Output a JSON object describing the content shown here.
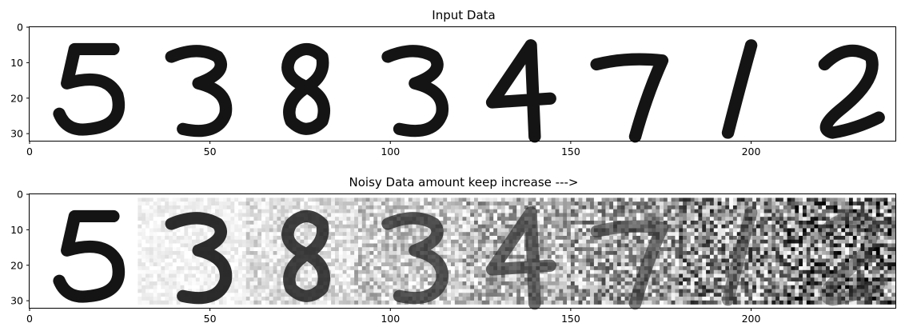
{
  "chart_data": [
    {
      "type": "heatmap",
      "title": "Input Data",
      "xlim": [
        0,
        240
      ],
      "ylim": [
        32,
        0
      ],
      "xticks": [
        0,
        50,
        100,
        150,
        200
      ],
      "yticks": [
        0,
        10,
        20,
        30
      ],
      "xtick_labels": [
        "0",
        "50",
        "100",
        "150",
        "200"
      ],
      "ytick_labels": [
        "0",
        "10",
        "20",
        "30"
      ],
      "colormap": "Greys",
      "digits": [
        "5",
        "3",
        "8",
        "3",
        "4",
        "7",
        "1",
        "2"
      ],
      "noise_levels": [
        0,
        0,
        0,
        0,
        0,
        0,
        0,
        0
      ]
    },
    {
      "type": "heatmap",
      "title": "Noisy Data amount keep increase --->",
      "xlim": [
        0,
        240
      ],
      "ylim": [
        32,
        0
      ],
      "xticks": [
        0,
        50,
        100,
        150,
        200
      ],
      "yticks": [
        0,
        10,
        20,
        30
      ],
      "xtick_labels": [
        "0",
        "50",
        "100",
        "150",
        "200"
      ],
      "ytick_labels": [
        "0",
        "10",
        "20",
        "30"
      ],
      "colormap": "Greys",
      "digits": [
        "5",
        "3",
        "8",
        "3",
        "4",
        "7",
        "1",
        "2"
      ],
      "noise_levels": [
        0.0,
        0.14,
        0.28,
        0.43,
        0.57,
        0.71,
        0.86,
        1.0
      ]
    }
  ]
}
